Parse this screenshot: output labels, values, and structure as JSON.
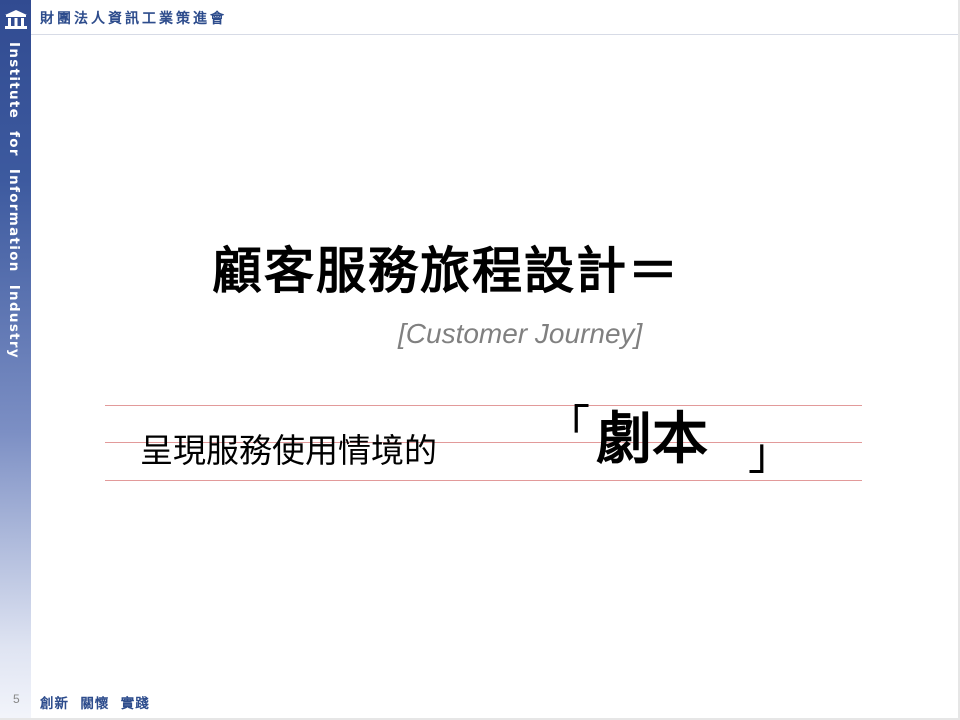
{
  "header": {
    "organization_name": "財團法人資訊工業策進會",
    "logo_icon": "building-columns-icon"
  },
  "sidebar": {
    "vertical_text": "Institute  for  Information  Industry"
  },
  "slide": {
    "title": "顧客服務旅程設計＝",
    "subtitle": "[Customer Journey]",
    "body_text": "呈現服務使用情境的",
    "bracket_open": "「",
    "highlight": "劇本",
    "bracket_close": "」"
  },
  "footer": {
    "page_number": "5",
    "slogan": "創新  關懷  實踐"
  },
  "colors": {
    "brand_blue": "#2d4c8c",
    "sidebar_top": "#314b91",
    "guide_line": "#e29a9a",
    "subtitle_gray": "#808080"
  }
}
